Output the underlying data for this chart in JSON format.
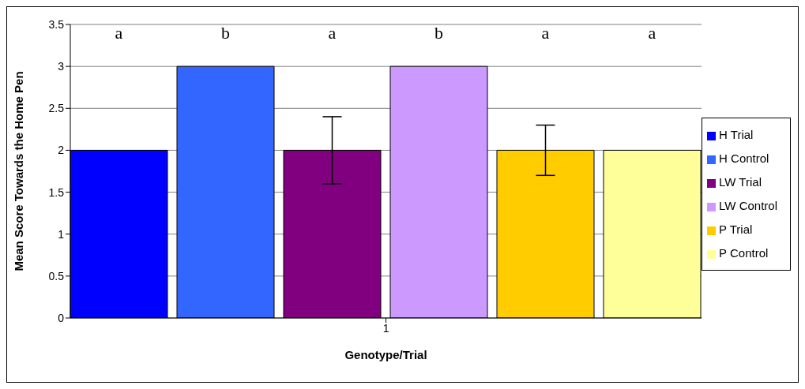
{
  "chart_data": {
    "type": "bar",
    "xlabel": "Genotype/Trial",
    "ylabel": "Mean Score Towards the Home Pen",
    "categories": [
      "1"
    ],
    "series": [
      {
        "name": "H Trial",
        "color": "#0000ff",
        "values": [
          2
        ]
      },
      {
        "name": "H Control",
        "color": "#3366ff",
        "values": [
          3
        ]
      },
      {
        "name": "LW Trial",
        "color": "#800080",
        "values": [
          2
        ],
        "errors": [
          0.4
        ]
      },
      {
        "name": "LW Control",
        "color": "#cc99ff",
        "values": [
          3
        ]
      },
      {
        "name": "P Trial",
        "color": "#ffcc00",
        "values": [
          2
        ],
        "errors": [
          0.3
        ]
      },
      {
        "name": "P Control",
        "color": "#ffff99",
        "values": [
          2
        ]
      }
    ],
    "annotations": [
      "a",
      "b",
      "a",
      "b",
      "a",
      "a"
    ],
    "ylim": [
      0,
      3.5
    ],
    "yticks": [
      0,
      0.5,
      1,
      1.5,
      2,
      2.5,
      3,
      3.5
    ],
    "grid": "y",
    "legend": "right"
  }
}
